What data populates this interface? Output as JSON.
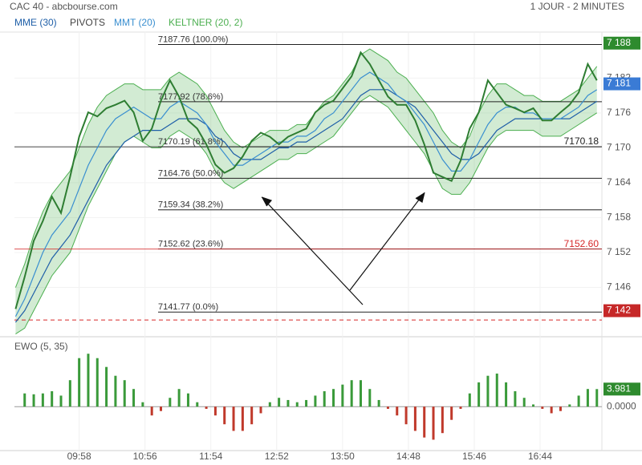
{
  "header": {
    "title": "CAC 40 - abcbourse.com",
    "period": "1 JOUR - 2 MINUTES"
  },
  "chart_data": [
    {
      "type": "line",
      "x": [
        "09:02",
        "09:10",
        "09:18",
        "09:26",
        "09:34",
        "09:42",
        "09:50",
        "09:58",
        "10:06",
        "10:14",
        "10:22",
        "10:30",
        "10:38",
        "10:46",
        "10:54",
        "11:02",
        "11:10",
        "11:18",
        "11:26",
        "11:34",
        "11:42",
        "11:50",
        "11:58",
        "12:06",
        "12:14",
        "12:22",
        "12:30",
        "12:38",
        "12:46",
        "12:54",
        "13:02",
        "13:10",
        "13:18",
        "13:26",
        "13:34",
        "13:42",
        "13:50",
        "13:58",
        "14:06",
        "14:14",
        "14:22",
        "14:30",
        "14:38",
        "14:46",
        "14:54",
        "15:02",
        "15:10",
        "15:18",
        "15:26",
        "15:34",
        "15:42",
        "15:50",
        "15:58",
        "16:06",
        "16:14",
        "16:22",
        "16:30",
        "16:38",
        "16:46",
        "16:54",
        "17:02",
        "17:10",
        "17:18",
        "17:26",
        "17:34"
      ],
      "xlim": [
        "09:01",
        "17:37"
      ],
      "xticks": [
        "09:58",
        "10:56",
        "11:54",
        "12:52",
        "13:50",
        "14:48",
        "15:46",
        "16:44"
      ],
      "ylim": [
        7137.8,
        7189.9
      ],
      "yticks": [
        {
          "value": 7182,
          "label": "7 182"
        },
        {
          "value": 7176,
          "label": "7 176"
        },
        {
          "value": 7170,
          "label": "7 170"
        },
        {
          "value": 7164,
          "label": "7 164"
        },
        {
          "value": 7158,
          "label": "7 158"
        },
        {
          "value": 7152,
          "label": "7 152"
        },
        {
          "value": 7146,
          "label": "7 146"
        }
      ],
      "price": {
        "color": "#2e7d32",
        "values": [
          7142.3,
          7147.8,
          7154.0,
          7157.4,
          7161.6,
          7158.8,
          7165.0,
          7171.9,
          7176.1,
          7175.4,
          7176.8,
          7177.4,
          7178.1,
          7176.1,
          7171.2,
          7173.3,
          7178.1,
          7181.6,
          7178.8,
          7174.7,
          7173.3,
          7170.6,
          7167.1,
          7165.7,
          7166.5,
          7168.5,
          7171.2,
          7172.6,
          7171.9,
          7170.6,
          7171.9,
          7172.6,
          7173.3,
          7176.1,
          7177.4,
          7178.1,
          7180.2,
          7182.3,
          7186.4,
          7184.4,
          7181.6,
          7178.8,
          7177.4,
          7177.4,
          7174.7,
          7170.6,
          7165.7,
          7165.0,
          7164.3,
          7167.8,
          7173.3,
          7176.1,
          7181.6,
          7179.5,
          7177.4,
          7176.8,
          7176.1,
          7176.8,
          7174.7,
          7174.7,
          7176.1,
          7177.4,
          7179.5,
          7184.4,
          7181.6
        ]
      },
      "series": [
        {
          "name": "MME (30)",
          "color": "#1f5fa8",
          "values": [
            7140,
            7142,
            7145,
            7148,
            7151,
            7153,
            7155,
            7158,
            7161,
            7164,
            7167,
            7169,
            7171,
            7172,
            7173,
            7173,
            7173,
            7174,
            7175,
            7175,
            7175,
            7174,
            7172,
            7171,
            7169,
            7168,
            7168,
            7168,
            7169,
            7170,
            7170,
            7171,
            7171,
            7172,
            7173,
            7174,
            7175,
            7177,
            7179,
            7180,
            7180,
            7180,
            7179,
            7178,
            7177,
            7175,
            7173,
            7171,
            7169,
            7168,
            7168,
            7169,
            7171,
            7173,
            7174,
            7175,
            7175,
            7175,
            7175,
            7175,
            7175,
            7175,
            7176,
            7177,
            7178
          ]
        },
        {
          "name": "MMT (20)",
          "color": "#3a8fd0",
          "values": [
            7141,
            7144,
            7148,
            7152,
            7155,
            7157,
            7159,
            7163,
            7167,
            7170,
            7173,
            7175,
            7176,
            7177,
            7176,
            7175,
            7175,
            7177,
            7178,
            7177,
            7176,
            7174,
            7171,
            7169,
            7167,
            7167,
            7168,
            7169,
            7170,
            7171,
            7171,
            7172,
            7172,
            7173,
            7175,
            7176,
            7178,
            7180,
            7182,
            7183,
            7182,
            7181,
            7179,
            7178,
            7176,
            7174,
            7171,
            7168,
            7166,
            7166,
            7168,
            7171,
            7174,
            7176,
            7177,
            7177,
            7176,
            7176,
            7175,
            7175,
            7175,
            7176,
            7177,
            7179,
            7180
          ]
        }
      ],
      "bands": {
        "name": "KELTNER (20, 2)",
        "color": "#4caf50",
        "upper": [
          7146,
          7150,
          7155,
          7159,
          7162,
          7164,
          7166,
          7170,
          7174,
          7177,
          7179,
          7180,
          7181,
          7181,
          7180,
          7180,
          7180,
          7182,
          7183,
          7182,
          7181,
          7179,
          7176,
          7173,
          7171,
          7170,
          7171,
          7172,
          7173,
          7173,
          7173,
          7174,
          7174,
          7176,
          7178,
          7179,
          7181,
          7183,
          7186,
          7187,
          7186,
          7185,
          7183,
          7182,
          7180,
          7178,
          7176,
          7173,
          7171,
          7170,
          7172,
          7176,
          7179,
          7181,
          7181,
          7180,
          7179,
          7179,
          7178,
          7178,
          7178,
          7179,
          7180,
          7182,
          7184
        ],
        "lower": [
          7138,
          7139,
          7142,
          7145,
          7148,
          7150,
          7152,
          7156,
          7160,
          7163,
          7166,
          7169,
          7171,
          7172,
          7171,
          7170,
          7170,
          7172,
          7173,
          7172,
          7171,
          7169,
          7166,
          7164,
          7163,
          7164,
          7165,
          7166,
          7167,
          7168,
          7168,
          7169,
          7169,
          7170,
          7171,
          7172,
          7174,
          7176,
          7178,
          7179,
          7178,
          7177,
          7175,
          7173,
          7171,
          7169,
          7166,
          7163,
          7162,
          7162,
          7164,
          7167,
          7170,
          7172,
          7173,
          7173,
          7173,
          7173,
          7172,
          7172,
          7172,
          7173,
          7174,
          7175,
          7176
        ]
      },
      "pivots": {
        "name": "PIVOTS",
        "color": "#444444",
        "levels": [
          {
            "value": 7187.76,
            "label": "7187.76  (100.0%)"
          },
          {
            "value": 7177.92,
            "label": "7177.92  (78.6%)"
          },
          {
            "value": 7170.19,
            "label": "7170.19  (61.8%)"
          },
          {
            "value": 7164.76,
            "label": "7164.76  (50.0%)"
          },
          {
            "value": 7159.34,
            "label": "7159.34  (38.2%)"
          },
          {
            "value": 7152.62,
            "label": "7152.62  (23.6%)"
          },
          {
            "value": 7141.77,
            "label": "7141.77  (0.0%)"
          }
        ]
      },
      "lines": [
        {
          "value": 7170.18,
          "label": "7170.18",
          "color": "#222222"
        },
        {
          "value": 7152.6,
          "label": "7152.60",
          "color": "#d62728"
        }
      ],
      "reference_line": {
        "value": 7140.4,
        "color": "#d62728"
      },
      "tags": [
        {
          "value": 7188,
          "label": "7 188",
          "color": "#2e8b2e"
        },
        {
          "value": 7181,
          "label": "7 181",
          "color": "#3a7bd5"
        },
        {
          "value": 7142,
          "label": "7 142",
          "color": "#c62828"
        }
      ]
    },
    {
      "type": "bar",
      "title": "EWO (5, 35)",
      "ylim": [
        -9.6,
        14.4
      ],
      "yticks": [
        {
          "value": 0,
          "label": "0.0000"
        }
      ],
      "values": [
        0,
        3,
        2.8,
        3,
        3.5,
        2.5,
        6,
        11,
        12,
        11,
        9,
        7,
        6,
        4,
        1,
        -2,
        -1,
        2,
        4,
        3,
        1,
        -0.5,
        -2,
        -4,
        -5.5,
        -5.5,
        -4,
        -1.5,
        1,
        2,
        1.5,
        1,
        1.5,
        2.5,
        3.5,
        4,
        5,
        6,
        6,
        4,
        1.5,
        -0.5,
        -2,
        -4,
        -5.5,
        -7,
        -7.5,
        -6,
        -3,
        -0.5,
        3,
        5.5,
        7,
        7.5,
        5.5,
        3.5,
        2,
        0.5,
        -0.5,
        -1.5,
        -1,
        0.5,
        2.5,
        4,
        3.981
      ],
      "positive_color": "#3a9a3a",
      "negative_color": "#c0392b",
      "tag": {
        "value": 3.981,
        "label": "3.981",
        "color": "#2e8b2e"
      }
    }
  ]
}
